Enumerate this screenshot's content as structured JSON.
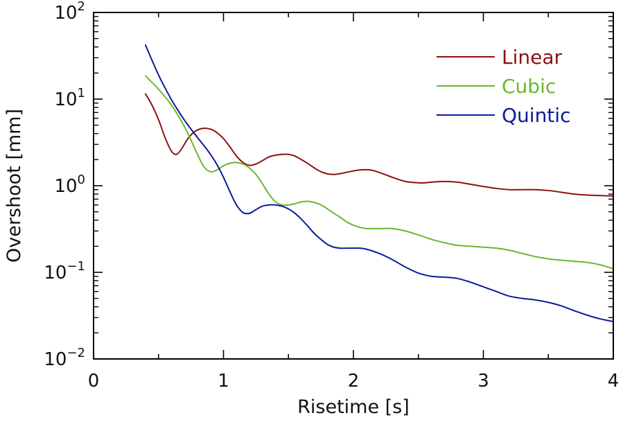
{
  "chart_data": {
    "type": "line",
    "title": "",
    "xlabel": "Risetime [s]",
    "ylabel": "Overshoot [mm]",
    "xlim": [
      0,
      4
    ],
    "ylim": [
      0.01,
      100
    ],
    "y_scale": "log",
    "grid": false,
    "legend_position": "top-right",
    "x_ticks": [
      {
        "value": 0,
        "label": "0"
      },
      {
        "value": 1,
        "label": "1"
      },
      {
        "value": 2,
        "label": "2"
      },
      {
        "value": 3,
        "label": "3"
      },
      {
        "value": 4,
        "label": "4"
      }
    ],
    "y_ticks": [
      {
        "value": 0.01,
        "base": "10",
        "exp": "−2"
      },
      {
        "value": 0.1,
        "base": "10",
        "exp": "−1"
      },
      {
        "value": 1,
        "base": "10",
        "exp": "0"
      },
      {
        "value": 10,
        "base": "10",
        "exp": "1"
      },
      {
        "value": 100,
        "base": "10",
        "exp": "2"
      }
    ],
    "series": [
      {
        "name": "Linear",
        "color": "#8b1111",
        "x": [
          0.4,
          0.45,
          0.5,
          0.55,
          0.6,
          0.64,
          0.68,
          0.72,
          0.76,
          0.8,
          0.85,
          0.9,
          0.95,
          1.0,
          1.05,
          1.1,
          1.15,
          1.2,
          1.25,
          1.3,
          1.35,
          1.4,
          1.45,
          1.5,
          1.55,
          1.6,
          1.65,
          1.7,
          1.75,
          1.8,
          1.85,
          1.9,
          1.95,
          2.0,
          2.05,
          2.1,
          2.15,
          2.2,
          2.3,
          2.4,
          2.5,
          2.55,
          2.6,
          2.7,
          2.8,
          2.9,
          3.0,
          3.1,
          3.2,
          3.3,
          3.4,
          3.5,
          3.6,
          3.7,
          3.8,
          3.9,
          4.0
        ],
        "y": [
          11.5,
          8.5,
          5.8,
          3.6,
          2.5,
          2.3,
          2.7,
          3.4,
          4.0,
          4.4,
          4.6,
          4.5,
          4.1,
          3.5,
          2.8,
          2.2,
          1.85,
          1.72,
          1.78,
          1.95,
          2.15,
          2.25,
          2.3,
          2.3,
          2.2,
          2.0,
          1.8,
          1.6,
          1.45,
          1.37,
          1.35,
          1.38,
          1.43,
          1.48,
          1.52,
          1.53,
          1.5,
          1.42,
          1.25,
          1.12,
          1.08,
          1.08,
          1.1,
          1.12,
          1.1,
          1.04,
          0.98,
          0.93,
          0.9,
          0.9,
          0.9,
          0.88,
          0.84,
          0.8,
          0.78,
          0.77,
          0.76
        ]
      },
      {
        "name": "Cubic",
        "color": "#6ab72d",
        "x": [
          0.4,
          0.5,
          0.6,
          0.7,
          0.8,
          0.85,
          0.9,
          0.95,
          1.0,
          1.05,
          1.1,
          1.15,
          1.2,
          1.25,
          1.3,
          1.35,
          1.4,
          1.45,
          1.5,
          1.55,
          1.6,
          1.65,
          1.7,
          1.75,
          1.8,
          1.85,
          1.9,
          1.95,
          2.0,
          2.05,
          2.1,
          2.15,
          2.2,
          2.3,
          2.4,
          2.5,
          2.6,
          2.7,
          2.8,
          2.9,
          3.0,
          3.1,
          3.2,
          3.3,
          3.4,
          3.5,
          3.6,
          3.7,
          3.8,
          3.9,
          4.0
        ],
        "y": [
          18.5,
          13.0,
          8.5,
          4.8,
          2.3,
          1.65,
          1.45,
          1.52,
          1.7,
          1.82,
          1.85,
          1.78,
          1.6,
          1.35,
          1.05,
          0.8,
          0.65,
          0.6,
          0.6,
          0.62,
          0.65,
          0.66,
          0.64,
          0.6,
          0.54,
          0.48,
          0.43,
          0.38,
          0.35,
          0.33,
          0.32,
          0.32,
          0.32,
          0.32,
          0.3,
          0.27,
          0.24,
          0.22,
          0.205,
          0.2,
          0.195,
          0.19,
          0.18,
          0.165,
          0.152,
          0.143,
          0.138,
          0.134,
          0.13,
          0.122,
          0.11
        ]
      },
      {
        "name": "Quintic",
        "color": "#0a1a9a",
        "x": [
          0.4,
          0.45,
          0.5,
          0.55,
          0.6,
          0.65,
          0.7,
          0.75,
          0.8,
          0.85,
          0.9,
          0.95,
          1.0,
          1.05,
          1.1,
          1.15,
          1.2,
          1.25,
          1.3,
          1.35,
          1.4,
          1.45,
          1.5,
          1.55,
          1.6,
          1.65,
          1.7,
          1.75,
          1.8,
          1.85,
          1.9,
          1.95,
          2.0,
          2.05,
          2.1,
          2.2,
          2.3,
          2.4,
          2.5,
          2.6,
          2.7,
          2.8,
          2.9,
          3.0,
          3.1,
          3.2,
          3.3,
          3.4,
          3.5,
          3.6,
          3.7,
          3.8,
          3.9,
          4.0
        ],
        "y": [
          42.0,
          28.0,
          19.0,
          13.5,
          9.8,
          7.4,
          5.7,
          4.5,
          3.6,
          2.9,
          2.3,
          1.75,
          1.25,
          0.85,
          0.6,
          0.49,
          0.48,
          0.53,
          0.58,
          0.6,
          0.6,
          0.58,
          0.54,
          0.48,
          0.41,
          0.34,
          0.28,
          0.24,
          0.21,
          0.195,
          0.19,
          0.19,
          0.19,
          0.19,
          0.185,
          0.165,
          0.14,
          0.115,
          0.098,
          0.09,
          0.088,
          0.085,
          0.077,
          0.068,
          0.06,
          0.053,
          0.05,
          0.048,
          0.045,
          0.041,
          0.036,
          0.032,
          0.029,
          0.027
        ]
      }
    ]
  }
}
